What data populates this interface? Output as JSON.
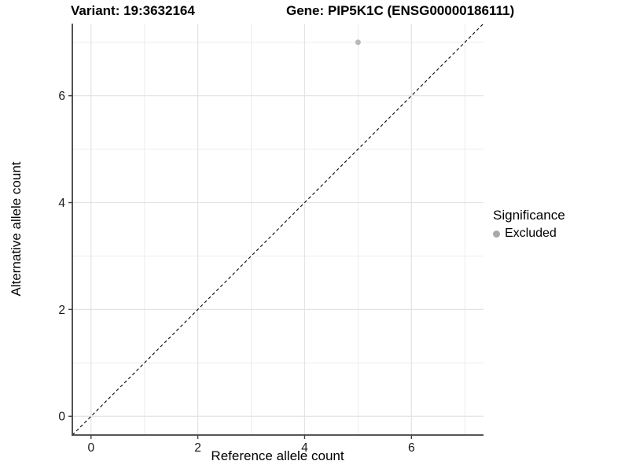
{
  "header": {
    "variant_title": "Variant: 19:3632164",
    "gene_title": "Gene: PIP5K1C (ENSG00000186111)"
  },
  "chart_data": {
    "type": "scatter",
    "xlabel": "Reference allele count",
    "ylabel": "Alternative allele count",
    "xlim": [
      -0.35,
      7.35
    ],
    "ylim": [
      -0.35,
      7.35
    ],
    "x_ticks": {
      "major": [
        0,
        2,
        4,
        6
      ],
      "minor": [
        1,
        3,
        5,
        7
      ]
    },
    "y_ticks": {
      "major": [
        0,
        2,
        4,
        6
      ],
      "minor": [
        1,
        3,
        5,
        7
      ]
    },
    "grid": "major+minor",
    "identity_line": {
      "style": "dashed",
      "slope": 1,
      "intercept": 0
    },
    "series": [
      {
        "name": "Excluded",
        "color": "#b9b9b9",
        "points": [
          {
            "x": 5,
            "y": 7
          }
        ]
      }
    ],
    "legend": {
      "title": "Significance",
      "position": "right",
      "entries": [
        {
          "label": "Excluded",
          "color": "#a9a9a9"
        }
      ]
    }
  },
  "colors": {
    "background": "#ffffff",
    "grid_major": "#e3e3e3",
    "grid_minor": "#eeeeee",
    "axis_line": "#3f3f3f",
    "tick_text": "#1a1a1a",
    "title_text": "#000000",
    "identity_line": "#000000"
  }
}
